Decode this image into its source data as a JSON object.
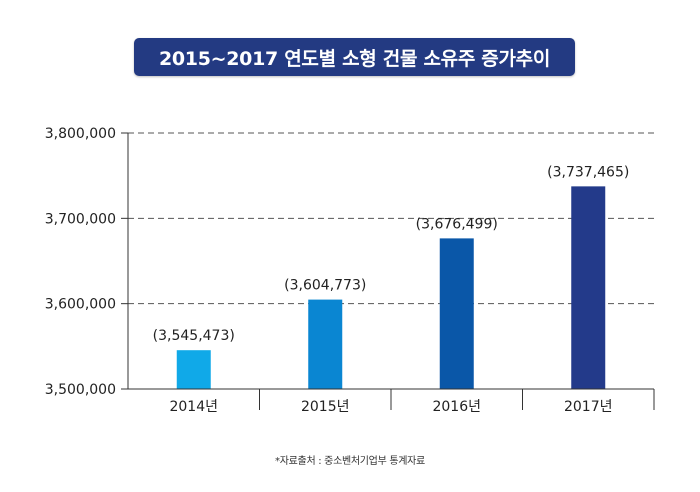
{
  "chart_data": {
    "type": "bar",
    "title": "2015~2017 연도별 소형 건물 소유주 증가추이",
    "categories": [
      "2014년",
      "2015년",
      "2016년",
      "2017년"
    ],
    "values": [
      3545473,
      3604773,
      3676499,
      3737465
    ],
    "data_labels": [
      "(3,545,473)",
      "(3,604,773)",
      "(3,676,499)",
      "(3,737,465)"
    ],
    "yticks": [
      3500000,
      3600000,
      3700000,
      3800000
    ],
    "ytick_labels": [
      "3,500,000",
      "3,600,000",
      "3,700,000",
      "3,800,000"
    ],
    "ylim": [
      3500000,
      3800000
    ],
    "grid": "dashed horizontal",
    "bar_colors": [
      "#10a9e8",
      "#0a86d2",
      "#0a57a8",
      "#233a8a"
    ],
    "xlabel": "",
    "ylabel": ""
  },
  "source_note": "*자료출처 : 중소벤처기업부 통계자료"
}
